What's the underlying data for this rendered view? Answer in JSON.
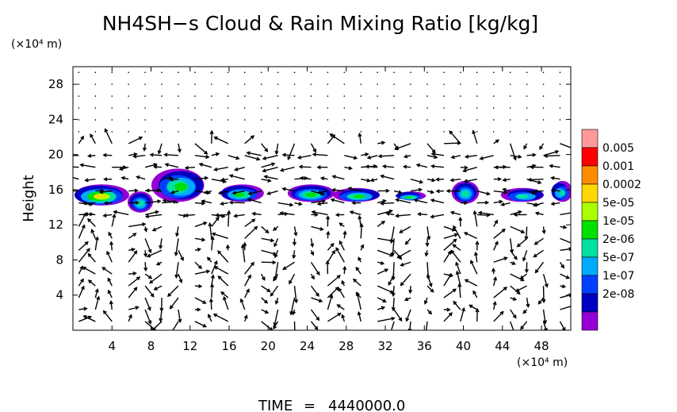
{
  "chart_data": {
    "type": "heatmap",
    "title": "NH4SH−s Cloud & Rain Mixing Ratio [kg/kg]",
    "xunits": "(×10⁴ m)",
    "yunits": "(×10⁴ m)",
    "ylabel": "Height",
    "xlabel": "",
    "xlim": [
      0,
      51
    ],
    "ylim": [
      0,
      30
    ],
    "xticks": [
      4,
      8,
      12,
      16,
      20,
      24,
      28,
      32,
      36,
      40,
      44,
      48
    ],
    "yticks": [
      4,
      8,
      12,
      16,
      20,
      24,
      28
    ],
    "grid": false,
    "colorbar": {
      "placement": "right",
      "levels": [
        "0.005",
        "0.001",
        "0.0002",
        "5e-05",
        "1e-05",
        "2e-06",
        "5e-07",
        "1e-07",
        "2e-08"
      ],
      "colors": [
        "#ff9999",
        "#ff0000",
        "#ff8c00",
        "#ffd700",
        "#aaff00",
        "#00e000",
        "#00e0a0",
        "#00aaff",
        "#0040ff",
        "#0000c0",
        "#9400d3"
      ]
    },
    "cloud_layer": {
      "altitude_range": [
        13.5,
        18.5
      ],
      "blobs": [
        {
          "x": [
            0,
            5.6
          ],
          "y": [
            14.2,
            16.6
          ],
          "peak": "0.0002"
        },
        {
          "x": [
            5.6,
            8.2
          ],
          "y": [
            13.4,
            15.8
          ],
          "peak": "5e-06"
        },
        {
          "x": [
            8.2,
            13.6
          ],
          "y": [
            14.6,
            18.4
          ],
          "peak": "1e-05"
        },
        {
          "x": [
            15.0,
            19.4
          ],
          "y": [
            14.6,
            16.6
          ],
          "peak": "1e-05"
        },
        {
          "x": [
            22.0,
            26.8
          ],
          "y": [
            14.6,
            16.6
          ],
          "peak": "1e-05"
        },
        {
          "x": [
            26.8,
            31.6
          ],
          "y": [
            14.6,
            16.2
          ],
          "peak": "1e-05"
        },
        {
          "x": [
            33.0,
            36.0
          ],
          "y": [
            14.8,
            15.8
          ],
          "peak": "1e-05"
        },
        {
          "x": [
            38.8,
            41.6
          ],
          "y": [
            14.4,
            17.0
          ],
          "peak": "5e-06"
        },
        {
          "x": [
            44.0,
            48.4
          ],
          "y": [
            14.6,
            16.2
          ],
          "peak": "5e-06"
        },
        {
          "x": [
            49.0,
            51.0
          ],
          "y": [
            14.6,
            17.0
          ],
          "peak": "5e-06"
        }
      ]
    },
    "vectors": "wind field arrows over the full domain"
  },
  "footer": {
    "time_label": "TIME",
    "time_eq": "=",
    "time_value": "4440000.0"
  },
  "colors": {
    "background": "#ffffff",
    "axes": "#000000",
    "arrows": "#000000"
  }
}
